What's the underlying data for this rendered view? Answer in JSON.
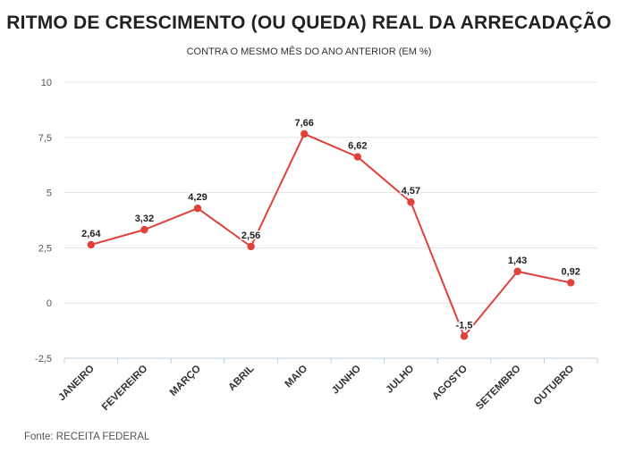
{
  "chart_data": {
    "type": "line",
    "title": "RITMO DE CRESCIMENTO (OU QUEDA) REAL DA ARRECADAÇÃO",
    "subtitle": "CONTRA O MESMO MÊS DO ANO ANTERIOR (EM %)",
    "categories": [
      "JANEIRO",
      "FEVEREIRO",
      "MARÇO",
      "ABRIL",
      "MAIO",
      "JUNHO",
      "JULHO",
      "AGOSTO",
      "SETEMBRO",
      "OUTUBRO"
    ],
    "values": [
      2.64,
      3.32,
      4.29,
      2.56,
      7.66,
      6.62,
      4.57,
      -1.5,
      1.43,
      0.92
    ],
    "value_labels": [
      "2,64",
      "3,32",
      "4,29",
      "2,56",
      "7,66",
      "6,62",
      "4,57",
      "-1,5",
      "1,43",
      "0,92"
    ],
    "yticks": [
      10,
      7.5,
      5,
      2.5,
      0,
      -2.5
    ],
    "ytick_labels": [
      "10",
      "7,5",
      "5",
      "2,5",
      "0",
      "-2,5"
    ],
    "ylim": [
      -2.5,
      10
    ],
    "grid": true,
    "xlabel": "",
    "ylabel": "",
    "color": "#e0413a"
  },
  "source": "Fonte: RECEITA FEDERAL"
}
